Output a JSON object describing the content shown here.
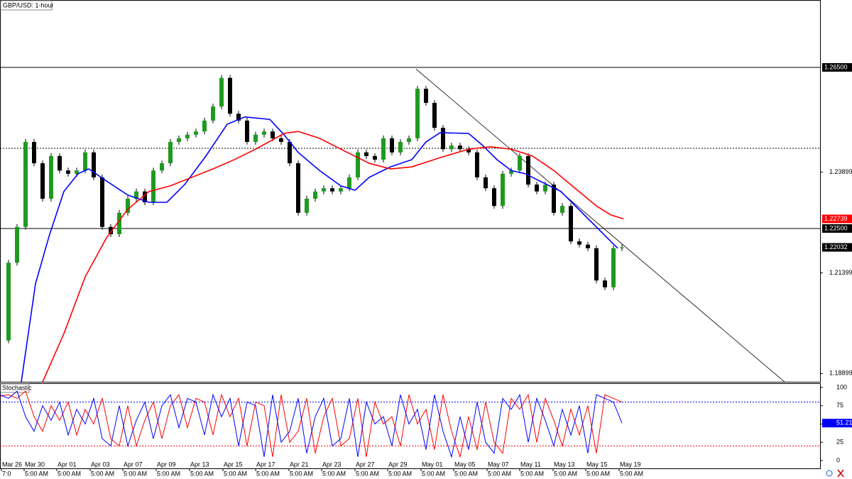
{
  "chart_data": {
    "type": "candlestick",
    "title": "GBP/USD: 1-hour",
    "x": [
      0,
      12,
      24,
      36,
      48,
      60,
      72,
      84,
      96,
      108,
      120,
      132,
      144,
      156,
      168,
      180,
      192,
      204,
      216,
      228,
      240,
      252,
      264,
      276,
      288,
      300,
      312,
      324,
      336,
      348,
      360,
      372,
      384,
      396,
      408,
      420,
      432,
      444,
      456,
      468,
      480,
      492,
      504,
      516,
      528,
      540,
      552,
      564,
      576,
      588,
      600,
      612,
      624,
      636,
      648,
      660,
      672,
      684,
      696,
      708,
      720,
      732,
      744,
      756,
      768,
      780,
      792,
      804,
      816,
      828,
      840,
      852,
      864,
      876
    ],
    "values": [
      1.1972,
      1.2165,
      1.2254,
      1.2465,
      1.2412,
      1.2324,
      1.243,
      1.2394,
      1.2386,
      1.2394,
      1.2439,
      1.2377,
      1.2254,
      1.2236,
      1.2289,
      1.2324,
      1.2342,
      1.2315,
      1.2394,
      1.2412,
      1.2465,
      1.2474,
      1.2483,
      1.2491,
      1.2518,
      1.2553,
      1.2624,
      1.2535,
      1.2518,
      1.2465,
      1.2483,
      1.2491,
      1.2474,
      1.2465,
      1.2412,
      1.2289,
      1.2324,
      1.2342,
      1.235,
      1.2342,
      1.235,
      1.2377,
      1.2439,
      1.243,
      1.2421,
      1.2474,
      1.2439,
      1.2465,
      1.2474,
      1.2597,
      1.2562,
      1.25,
      1.2447,
      1.2456,
      1.2447,
      1.2439,
      1.2377,
      1.235,
      1.2306,
      1.2386,
      1.2394,
      1.243,
      1.2359,
      1.2342,
      1.2359,
      1.2289,
      1.2306,
      1.2218,
      1.221,
      1.2201,
      1.2121,
      1.2104,
      1.2201,
      1.2203
    ],
    "up_color": "#1f9a1f",
    "down_color": "#000000",
    "moving_averages": [
      {
        "color": "#0000ff",
        "x": [
          30,
          50,
          70,
          90,
          110,
          125,
          150,
          180,
          210,
          235,
          260,
          290,
          320,
          345,
          380,
          400,
          420,
          450,
          480,
          500,
          520,
          550,
          580,
          600,
          620,
          660,
          680,
          700,
          720,
          740,
          760,
          790,
          820,
          850,
          870
        ],
        "values": [
          1.1869,
          1.2113,
          1.2236,
          1.2342,
          1.2386,
          1.2398,
          1.2368,
          1.2333,
          1.2315,
          1.2315,
          1.2359,
          1.243,
          1.2509,
          1.2527,
          1.2521,
          1.2483,
          1.2439,
          1.2394,
          1.2356,
          1.2345,
          1.2377,
          1.2403,
          1.2421,
          1.2465,
          1.2488,
          1.2486,
          1.2456,
          1.2421,
          1.2394,
          1.2386,
          1.2368,
          1.2342,
          1.2289,
          1.2236,
          1.2201
        ]
      },
      {
        "color": "#ff0000",
        "x": [
          60,
          90,
          120,
          150,
          180,
          210,
          240,
          270,
          300,
          330,
          360,
          400,
          420,
          450,
          480,
          520,
          550,
          580,
          620,
          660,
          690,
          720,
          750,
          780,
          810,
          840,
          860,
          878
        ],
        "values": [
          1.1869,
          1.1989,
          1.213,
          1.2227,
          1.2298,
          1.2342,
          1.2356,
          1.2377,
          1.2398,
          1.2421,
          1.2447,
          1.2486,
          1.2491,
          1.2474,
          1.2447,
          1.2412,
          1.2398,
          1.2403,
          1.2426,
          1.2447,
          1.2453,
          1.2447,
          1.243,
          1.2394,
          1.235,
          1.2306,
          1.2284,
          1.2274
        ]
      }
    ],
    "trendline": {
      "x": [
        586,
        1105
      ],
      "values": [
        1.2646,
        1.1869
      ]
    },
    "levels": [
      {
        "value": 1.265,
        "label": "1.26500",
        "style": "solid"
      },
      {
        "value": 1.225,
        "label": "1.22500",
        "style": "solid"
      },
      {
        "value": 1.24491,
        "style": "dotted"
      }
    ],
    "price_labels": [
      {
        "value": 1.22739,
        "label": "1.22739",
        "color": "#ff0000"
      },
      {
        "value": 1.22032,
        "label": "1.22032",
        "color": "#000000"
      }
    ],
    "xlim": [
      0,
      1155
    ],
    "ylim": [
      1.18694,
      1.28174
    ],
    "yticks": [
      {
        "value": 1.23899,
        "label": "1.23899"
      },
      {
        "value": 1.21399,
        "label": "1.21399"
      },
      {
        "value": 1.18899,
        "label": "1.18899"
      }
    ],
    "xticks": [
      {
        "value": 2,
        "label": "Mar 26"
      },
      {
        "value": 34,
        "label": "Mar 30"
      },
      {
        "value": 80,
        "label": "Apr 01"
      },
      {
        "value": 127,
        "label": "Apr 03"
      },
      {
        "value": 173,
        "label": "Apr 07"
      },
      {
        "value": 220,
        "label": "Apr 09"
      },
      {
        "value": 267,
        "label": "Apr 13"
      },
      {
        "value": 314,
        "label": "Apr 15"
      },
      {
        "value": 360,
        "label": "Apr 17"
      },
      {
        "value": 407,
        "label": "Apr 21"
      },
      {
        "value": 453,
        "label": "Apr 23"
      },
      {
        "value": 500,
        "label": "Apr 27"
      },
      {
        "value": 546,
        "label": "Apr 29"
      },
      {
        "value": 593,
        "label": "May 01"
      },
      {
        "value": 639,
        "label": "May 05"
      },
      {
        "value": 686,
        "label": "May 07"
      },
      {
        "value": 732,
        "label": "May 11"
      },
      {
        "value": 779,
        "label": "May 13"
      },
      {
        "value": 825,
        "label": "May 15"
      },
      {
        "value": 872,
        "label": "May 19"
      }
    ],
    "xtick_sublabels": [
      "7:0",
      "5:00 AM",
      "5:00 AM",
      "5:00 AM",
      "5:00 AM",
      "5:00 AM",
      "5:00 AM",
      "5:00 AM",
      "5:00 AM",
      "5:00 AM",
      "5:00 AM",
      "5:00 AM",
      "5:00 AM",
      "5:00 AM",
      "5:00 AM",
      "5:00 AM",
      "5:00 AM",
      "5:00 AM",
      "5:00 AM",
      "5:00 AM"
    ],
    "indicator": {
      "title": "Stochastic",
      "ylim": [
        -10.7,
        105.8
      ],
      "yticks": [
        100,
        75,
        50,
        25,
        0
      ],
      "levels": [
        {
          "value": 80,
          "color": "#0000ff"
        },
        {
          "value": 20,
          "color": "#ff0000"
        }
      ],
      "series": [
        {
          "color": "#ff0000",
          "values": [
            88,
            90,
            85,
            95,
            60,
            40,
            75,
            55,
            80,
            35,
            70,
            50,
            85,
            30,
            20,
            75,
            20,
            55,
            80,
            30,
            75,
            90,
            45,
            85,
            80,
            35,
            90,
            60,
            85,
            20,
            80,
            75,
            5,
            90,
            25,
            40,
            85,
            10,
            60,
            85,
            20,
            30,
            85,
            5,
            80,
            50,
            60,
            20,
            90,
            50,
            70,
            15,
            90,
            40,
            5,
            60,
            15,
            80,
            25,
            10,
            85,
            70,
            90,
            25,
            85,
            55,
            20,
            70,
            35,
            75,
            10,
            90,
            85,
            80
          ]
        },
        {
          "color": "#0000ff",
          "values": [
            90,
            85,
            95,
            60,
            40,
            75,
            55,
            80,
            35,
            70,
            50,
            85,
            30,
            20,
            75,
            20,
            55,
            80,
            30,
            75,
            90,
            45,
            85,
            80,
            35,
            90,
            60,
            85,
            20,
            80,
            75,
            5,
            90,
            25,
            40,
            85,
            10,
            60,
            85,
            20,
            30,
            85,
            5,
            80,
            50,
            60,
            20,
            90,
            50,
            70,
            15,
            90,
            40,
            5,
            60,
            15,
            80,
            25,
            10,
            85,
            70,
            90,
            25,
            85,
            55,
            20,
            70,
            35,
            75,
            10,
            90,
            85,
            80,
            51.21
          ],
          "value_labels": {
            "73": "51.21"
          }
        }
      ]
    }
  }
}
